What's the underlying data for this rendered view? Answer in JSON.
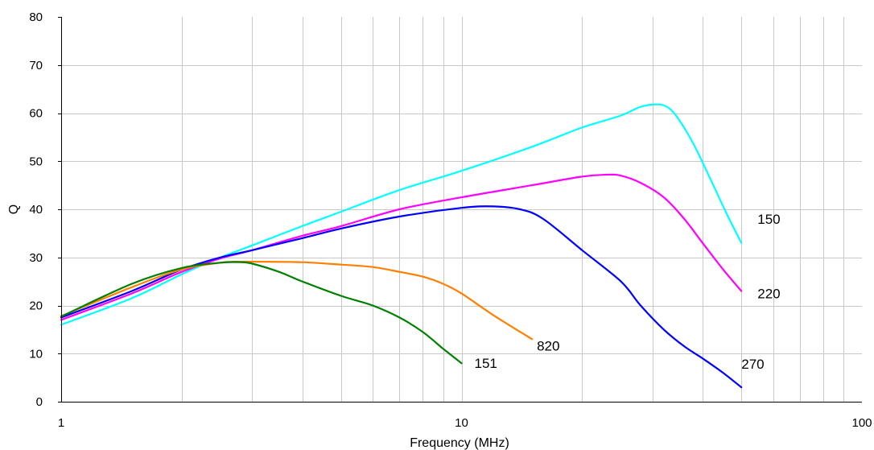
{
  "chart_data": {
    "type": "line",
    "xlabel": "Frequency (MHz)",
    "ylabel": "Q",
    "xscale": "log",
    "xlim": [
      1,
      100
    ],
    "ylim": [
      0,
      80
    ],
    "xticks": [
      1,
      10,
      100
    ],
    "xtick_labels": [
      "1",
      "10",
      "100"
    ],
    "yticks": [
      0,
      10,
      20,
      30,
      40,
      50,
      60,
      70,
      80
    ],
    "ytick_labels": [
      "0",
      "10",
      "20",
      "30",
      "40",
      "50",
      "60",
      "70",
      "80"
    ],
    "grid": true,
    "legend": "inline labels at line ends",
    "series": [
      {
        "name": "150",
        "color": "#00ffff",
        "x": [
          1,
          1.5,
          2,
          2.5,
          3,
          4,
          5,
          7,
          10,
          15,
          20,
          25,
          28,
          31,
          33,
          35,
          38,
          42,
          46,
          50
        ],
        "y": [
          16,
          21.5,
          26.5,
          30,
          32.5,
          36.5,
          39.5,
          44,
          48,
          53,
          57,
          59.5,
          61.3,
          61.8,
          61,
          58.5,
          53.5,
          46,
          39,
          33
        ]
      },
      {
        "name": "220",
        "color": "#ff00ff",
        "x": [
          1,
          1.5,
          2,
          2.5,
          3,
          4,
          5,
          7,
          10,
          15,
          20,
          23,
          25,
          28,
          32,
          36,
          40,
          45,
          50
        ],
        "y": [
          17,
          22.5,
          27,
          29.8,
          31.5,
          34.5,
          36.5,
          40,
          42.5,
          45,
          46.8,
          47.2,
          47,
          45.5,
          42.5,
          38,
          33,
          27.5,
          23
        ]
      },
      {
        "name": "270",
        "color": "#0000ff",
        "x": [
          1,
          1.5,
          2,
          2.5,
          3,
          4,
          5,
          7,
          10,
          12,
          14,
          16,
          20,
          25,
          28,
          32,
          36,
          40,
          45,
          50
        ],
        "y": [
          17.5,
          23,
          27.5,
          30,
          31.5,
          34,
          36,
          38.5,
          40.3,
          40.6,
          40,
          38,
          31.5,
          25,
          20,
          15,
          11.5,
          9,
          6,
          3
        ]
      },
      {
        "name": "820",
        "color": "#ff7f00",
        "x": [
          1,
          1.5,
          2,
          2.5,
          2.8,
          3,
          4,
          5,
          6,
          7,
          8,
          9,
          10,
          12,
          15
        ],
        "y": [
          17.8,
          23.8,
          27.5,
          28.9,
          29.1,
          29.1,
          29,
          28.5,
          28,
          27,
          26,
          24.5,
          22.5,
          18,
          13
        ]
      },
      {
        "name": "151",
        "color": "#008000",
        "x": [
          1,
          1.5,
          2,
          2.5,
          2.8,
          3,
          3.5,
          4,
          5,
          6,
          7,
          8,
          9,
          10
        ],
        "y": [
          17.7,
          24.5,
          27.8,
          28.9,
          29,
          28.7,
          27,
          25,
          22,
          20,
          17.5,
          14.5,
          11,
          8
        ]
      }
    ]
  }
}
